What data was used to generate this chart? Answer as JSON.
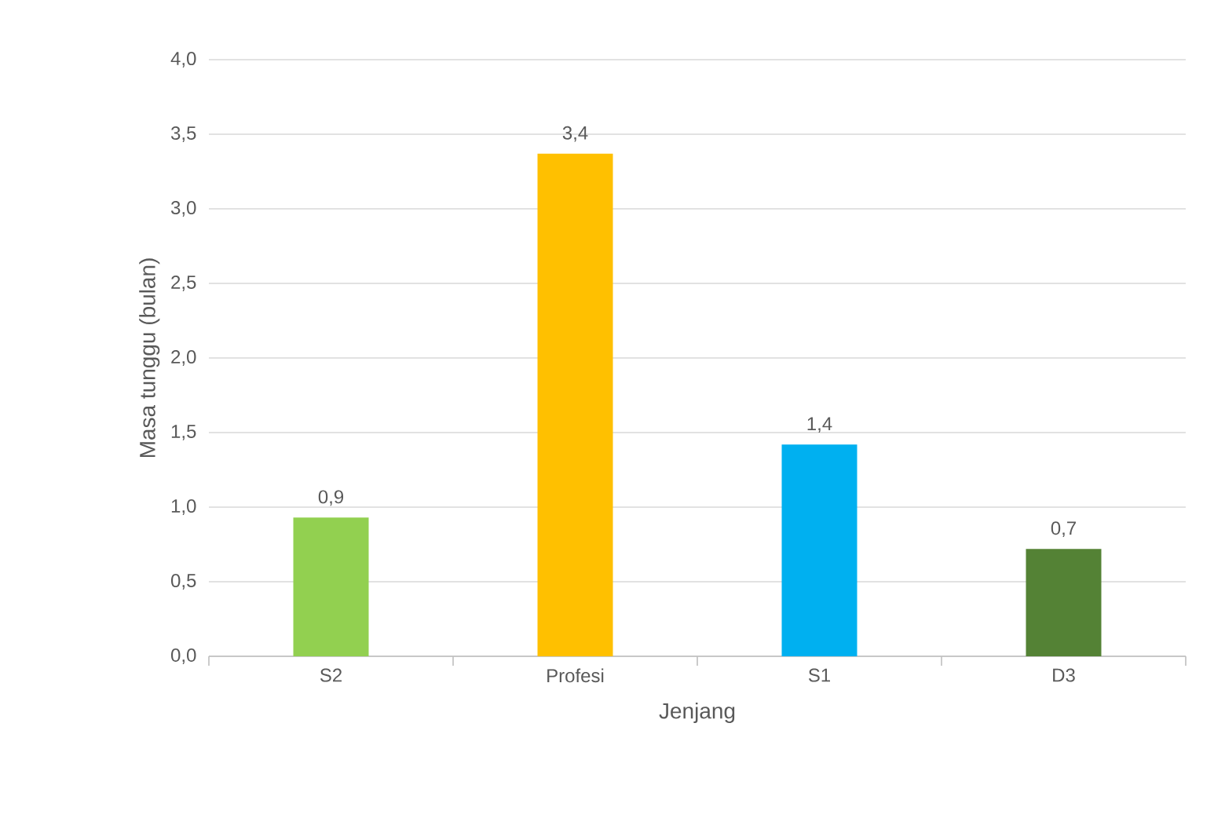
{
  "chart_data": {
    "type": "bar",
    "xlabel": "Jenjang",
    "ylabel": "Masa tunggu (bulan)",
    "categories": [
      "S2",
      "Profesi",
      "S1",
      "D3"
    ],
    "values": [
      0.93,
      3.37,
      1.42,
      0.72
    ],
    "colors": [
      "#92d050",
      "#ffc000",
      "#00b0f0",
      "#548235"
    ],
    "value_labels": [
      "0,9",
      "3,4",
      "1,4",
      "0,7"
    ],
    "ylim": [
      0,
      4
    ],
    "yticks": [
      {
        "value": 0,
        "label": "0,0"
      },
      {
        "value": 0.5,
        "label": "0,5"
      },
      {
        "value": 1,
        "label": "1,0"
      },
      {
        "value": 1.5,
        "label": "1,5"
      },
      {
        "value": 2,
        "label": "2,0"
      },
      {
        "value": 2.5,
        "label": "2,5"
      },
      {
        "value": 3,
        "label": "3,0"
      },
      {
        "value": 3.5,
        "label": "3,5"
      },
      {
        "value": 4,
        "label": "4,0"
      }
    ],
    "grid": "y"
  }
}
